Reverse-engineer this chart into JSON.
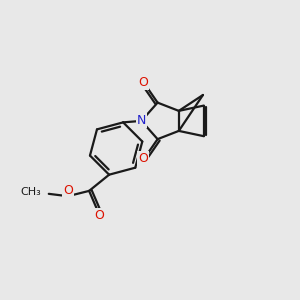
{
  "bg_color": "#e8e8e8",
  "bond_color": "#1a1a1a",
  "o_color": "#dd1100",
  "n_color": "#2222cc",
  "bond_width": 1.6,
  "figsize": [
    3.0,
    3.0
  ],
  "dpi": 100,
  "xlim": [
    0,
    10
  ],
  "ylim": [
    0,
    10
  ]
}
